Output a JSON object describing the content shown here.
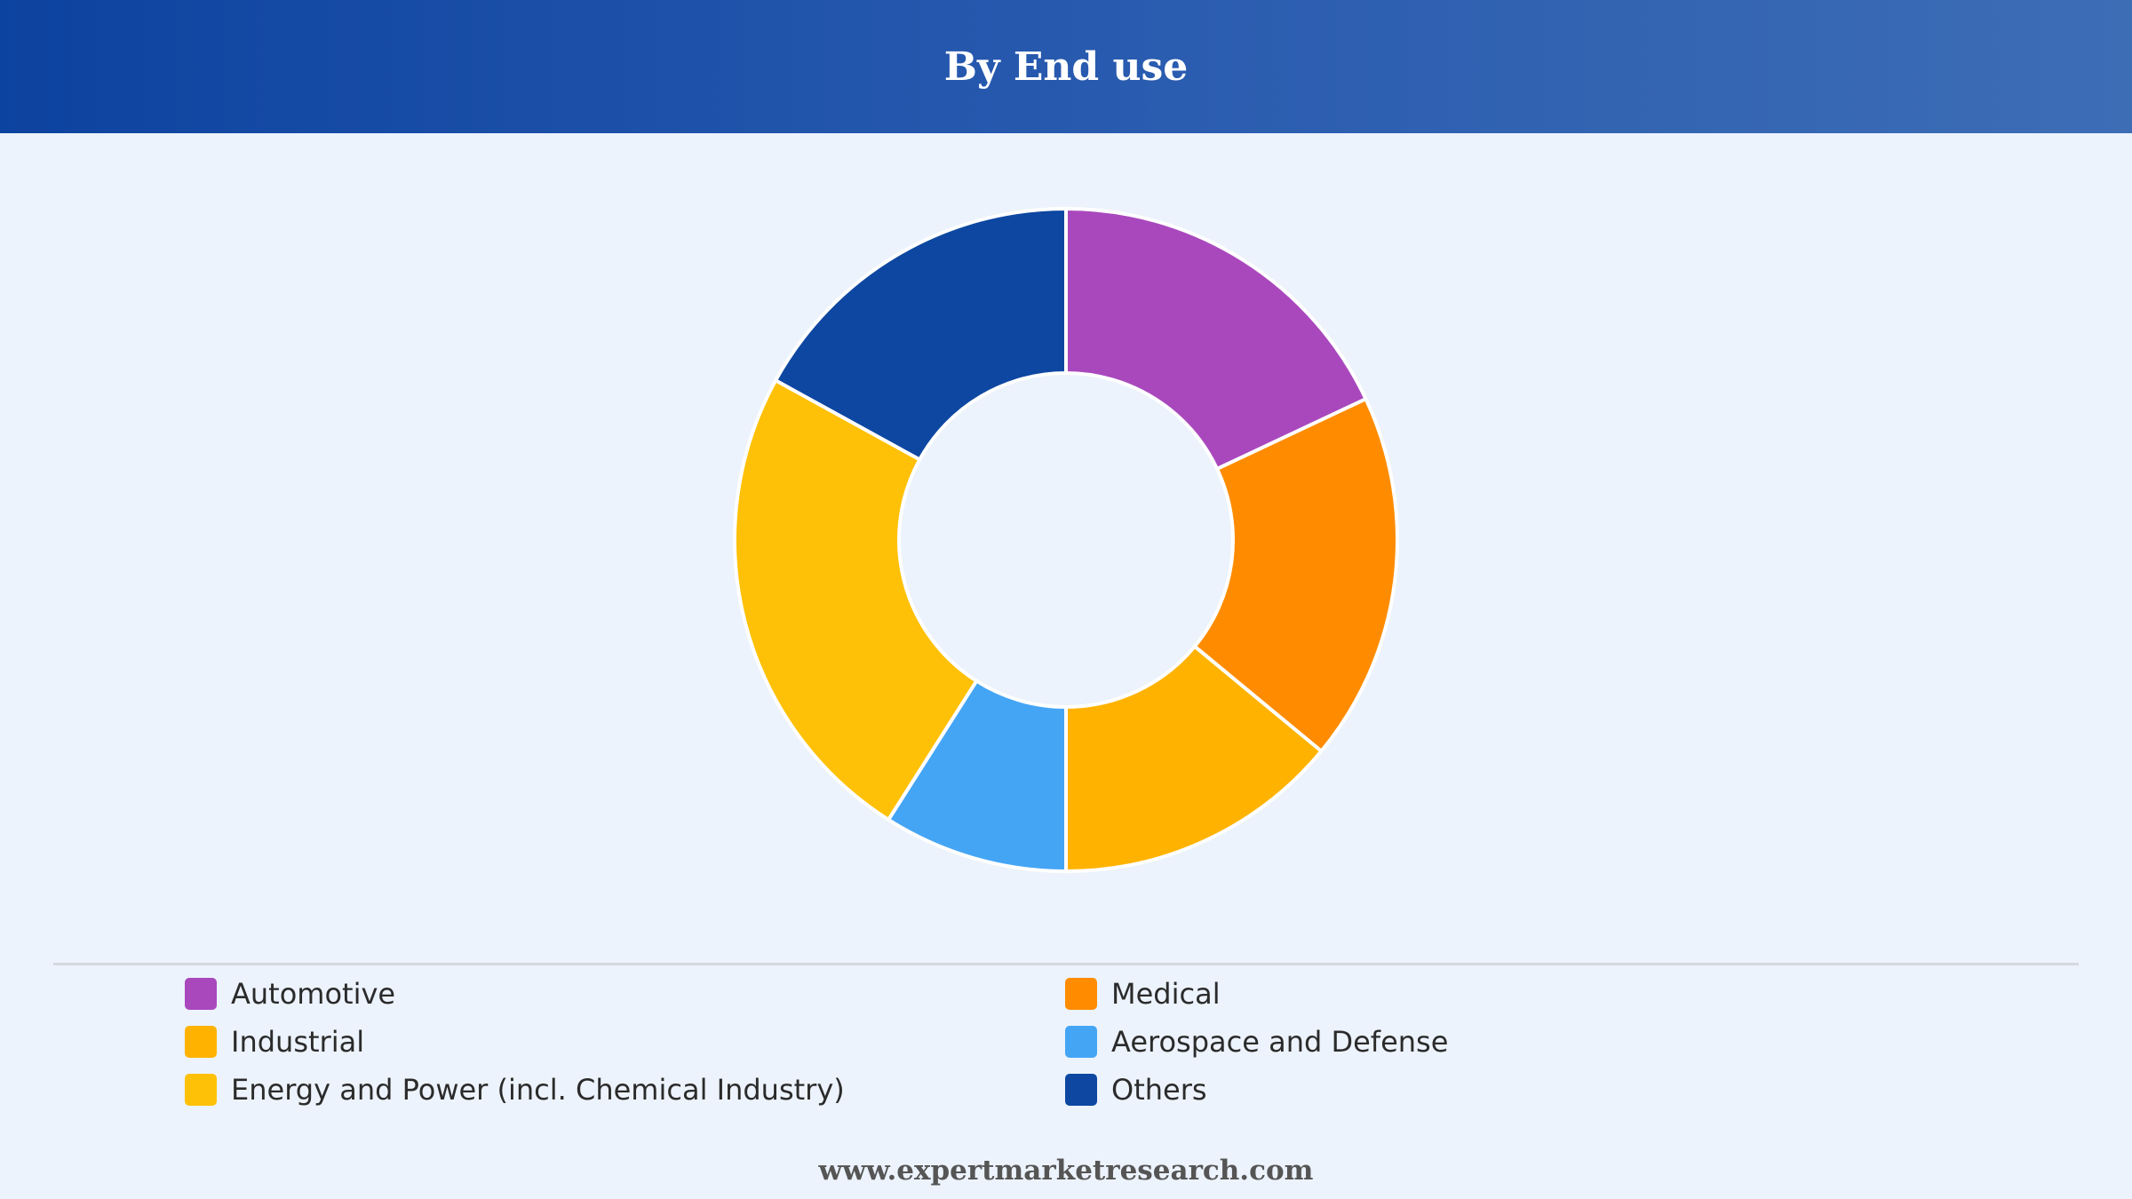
{
  "header": {
    "title": "By End use"
  },
  "chart_data": {
    "type": "pie",
    "donut": true,
    "title": "By End use",
    "start_angle_deg": 0,
    "legend_position": "bottom",
    "series": [
      {
        "name": "Automotive",
        "value": 18,
        "color": "#a948bd"
      },
      {
        "name": "Medical",
        "value": 18,
        "color": "#ff8c00"
      },
      {
        "name": "Industrial",
        "value": 14,
        "color": "#ffb300"
      },
      {
        "name": "Aerospace and Defense",
        "value": 9,
        "color": "#45a5f5"
      },
      {
        "name": "Energy and Power (incl. Chemical Industry)",
        "value": 24,
        "color": "#ffc107"
      },
      {
        "name": "Others",
        "value": 17,
        "color": "#0d47a1"
      }
    ]
  },
  "legend": {
    "items": [
      {
        "label": "Automotive",
        "color": "#a948bd"
      },
      {
        "label": "Medical",
        "color": "#ff8c00"
      },
      {
        "label": "Industrial",
        "color": "#ffb300"
      },
      {
        "label": "Aerospace and Defense",
        "color": "#45a5f5"
      },
      {
        "label": "Energy and Power (incl. Chemical Industry)",
        "color": "#ffc107"
      },
      {
        "label": "Others",
        "color": "#0d47a1"
      }
    ]
  },
  "footer": {
    "text": "www.expertmarketresearch.com"
  }
}
